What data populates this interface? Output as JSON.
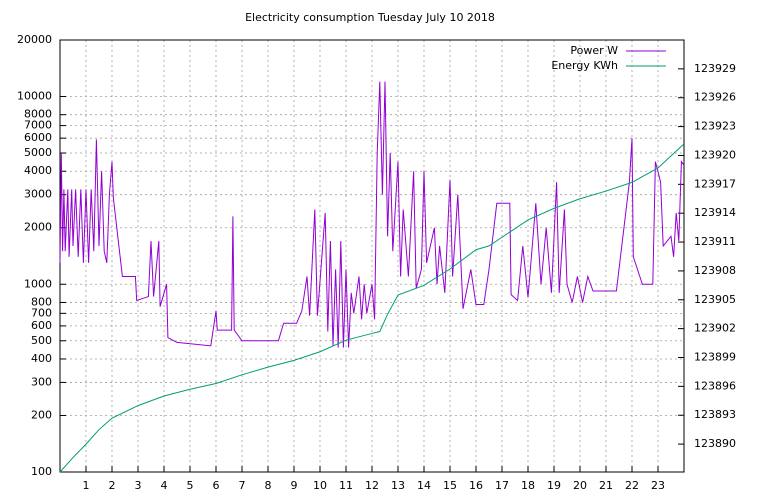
{
  "chart_data": {
    "type": "line",
    "title": "Electricity consumption Tuesday July 10 2018",
    "xlim": [
      0,
      24
    ],
    "xticks": [
      1,
      2,
      3,
      4,
      5,
      6,
      7,
      8,
      9,
      10,
      11,
      12,
      13,
      14,
      15,
      16,
      17,
      18,
      19,
      20,
      21,
      22,
      23
    ],
    "ylim": [
      100,
      20000
    ],
    "ylog": true,
    "yticks": [
      100,
      200,
      300,
      400,
      500,
      600,
      700,
      800,
      1000,
      2000,
      3000,
      4000,
      5000,
      6000,
      7000,
      8000,
      10000,
      20000
    ],
    "y2lim": [
      123887.1,
      123932
    ],
    "y2ticks": [
      123890,
      123893,
      123896,
      123899,
      123902,
      123905,
      123908,
      123911,
      123914,
      123917,
      123920,
      123923,
      123926,
      123929
    ],
    "grid": true,
    "legend": "top-right",
    "series": [
      {
        "name": "Power W",
        "color": "#9400d3",
        "axis": "y",
        "x": [
          0.0,
          0.05,
          0.1,
          0.15,
          0.2,
          0.3,
          0.35,
          0.45,
          0.5,
          0.6,
          0.7,
          0.8,
          0.9,
          1.0,
          1.1,
          1.2,
          1.3,
          1.4,
          1.5,
          1.6,
          1.7,
          1.8,
          1.9,
          2.0,
          2.05,
          2.4,
          2.9,
          2.95,
          3.4,
          3.5,
          3.6,
          3.8,
          3.85,
          4.1,
          4.15,
          4.5,
          5.8,
          6.0,
          6.05,
          6.6,
          6.65,
          6.7,
          7.0,
          7.5,
          8.4,
          8.6,
          9.1,
          9.3,
          9.5,
          9.6,
          9.8,
          9.9,
          10.2,
          10.3,
          10.4,
          10.5,
          10.6,
          10.7,
          10.8,
          10.9,
          11.0,
          11.1,
          11.2,
          11.3,
          11.5,
          11.6,
          11.7,
          11.8,
          12.0,
          12.1,
          12.2,
          12.3,
          12.4,
          12.5,
          12.6,
          12.7,
          12.8,
          13.0,
          13.1,
          13.2,
          13.4,
          13.6,
          13.7,
          13.9,
          14.0,
          14.1,
          14.4,
          14.5,
          14.6,
          14.8,
          15.0,
          15.1,
          15.3,
          15.5,
          15.8,
          16.0,
          16.3,
          16.5,
          16.8,
          17.3,
          17.35,
          17.6,
          17.8,
          18.0,
          18.3,
          18.5,
          18.7,
          18.9,
          19.1,
          19.2,
          19.4,
          19.5,
          19.7,
          19.9,
          20.1,
          20.3,
          20.5,
          21.0,
          21.4,
          21.9,
          22.0,
          22.05,
          22.4,
          22.8,
          22.9,
          23.1,
          23.2,
          23.5,
          23.6,
          23.7,
          23.8,
          23.9,
          24.0
        ],
        "values": [
          1300,
          5000,
          1500,
          3200,
          1500,
          3200,
          1400,
          3200,
          1600,
          3200,
          1400,
          3200,
          1300,
          3200,
          1300,
          3200,
          1500,
          5900,
          1600,
          4000,
          1500,
          1300,
          3000,
          4500,
          2900,
          1100,
          1100,
          820,
          860,
          1700,
          860,
          1700,
          760,
          1000,
          520,
          490,
          470,
          720,
          570,
          570,
          2300,
          570,
          500,
          500,
          500,
          620,
          620,
          720,
          1100,
          680,
          2500,
          680,
          2400,
          560,
          1700,
          470,
          1200,
          460,
          1700,
          460,
          1200,
          460,
          900,
          700,
          1100,
          650,
          1000,
          700,
          1000,
          650,
          5000,
          12000,
          3000,
          12000,
          1800,
          5000,
          1500,
          4500,
          1100,
          2500,
          1100,
          4000,
          950,
          1200,
          4000,
          1300,
          2000,
          1000,
          1600,
          900,
          3600,
          1100,
          3000,
          740,
          1200,
          780,
          780,
          1200,
          2700,
          2700,
          880,
          820,
          1600,
          850,
          2700,
          1000,
          2000,
          900,
          3500,
          900,
          2500,
          1000,
          800,
          1100,
          800,
          1100,
          920,
          920,
          920,
          3500,
          6000,
          1400,
          1000,
          1000,
          4500,
          3500,
          1600,
          1800,
          1400,
          2400,
          1700,
          4500,
          4300
        ]
      },
      {
        "name": "Energy KWh",
        "color": "#009e73",
        "axis": "y2",
        "x": [
          0,
          0.5,
          1,
          1.5,
          2,
          3,
          4,
          5,
          6,
          7,
          8,
          9,
          10,
          11,
          12,
          12.3,
          12.6,
          13,
          14,
          15,
          16,
          16.5,
          17,
          18,
          19,
          20,
          21,
          22,
          23,
          24
        ],
        "values": [
          123887.1,
          123888.6,
          123890,
          123891.5,
          123892.7,
          123894.0,
          123895.0,
          123895.7,
          123896.3,
          123897.2,
          123898,
          123898.7,
          123899.6,
          123900.8,
          123901.5,
          123901.7,
          123903.5,
          123905.5,
          123906.5,
          123908.2,
          123910.2,
          123910.6,
          123911.5,
          123913.3,
          123914.5,
          123915.5,
          123916.3,
          123917.2,
          123918.7,
          123921.2
        ]
      }
    ]
  }
}
